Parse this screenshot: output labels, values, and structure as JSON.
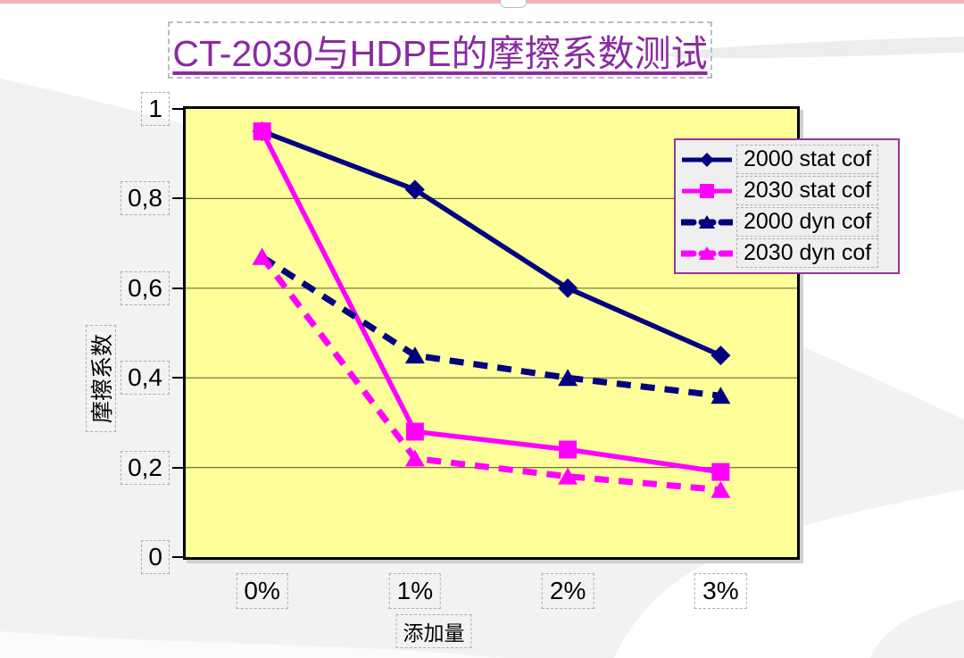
{
  "slide": {
    "top_bar_color": "#f0b4b4"
  },
  "chart_data": {
    "type": "line",
    "title": "CT-2030与HDPE的摩擦系数测试",
    "xlabel": "添加量",
    "ylabel": "摩擦系数",
    "categories": [
      "0%",
      "1%",
      "2%",
      "3%"
    ],
    "series": [
      {
        "name": "2000 stat cof",
        "values": [
          0.95,
          0.82,
          0.6,
          0.45
        ],
        "color": "#000080",
        "dashed": false,
        "marker": "diamond"
      },
      {
        "name": "2030 stat cof",
        "values": [
          0.95,
          0.28,
          0.24,
          0.19
        ],
        "color": "#ff00ff",
        "dashed": false,
        "marker": "square"
      },
      {
        "name": "2000 dyn cof",
        "values": [
          0.67,
          0.45,
          0.4,
          0.36
        ],
        "color": "#000080",
        "dashed": true,
        "marker": "triangle"
      },
      {
        "name": "2030 dyn cof",
        "values": [
          0.67,
          0.22,
          0.18,
          0.15
        ],
        "color": "#ff00ff",
        "dashed": true,
        "marker": "triangle"
      }
    ],
    "ylim": [
      0,
      1
    ],
    "yticks": [
      {
        "value": 1,
        "label": "1"
      },
      {
        "value": 0.8,
        "label": "0,8"
      },
      {
        "value": 0.6,
        "label": "0,6"
      },
      {
        "value": 0.4,
        "label": "0,4"
      },
      {
        "value": 0.2,
        "label": "0,2"
      },
      {
        "value": 0,
        "label": "0"
      }
    ],
    "gridline_values": [
      0.2,
      0.4,
      0.6,
      0.8
    ],
    "plot_bg": "#ffff99",
    "gridline_color": "#6e6e3c",
    "legend_position": "top-right",
    "legend_border_color": "#993399"
  }
}
